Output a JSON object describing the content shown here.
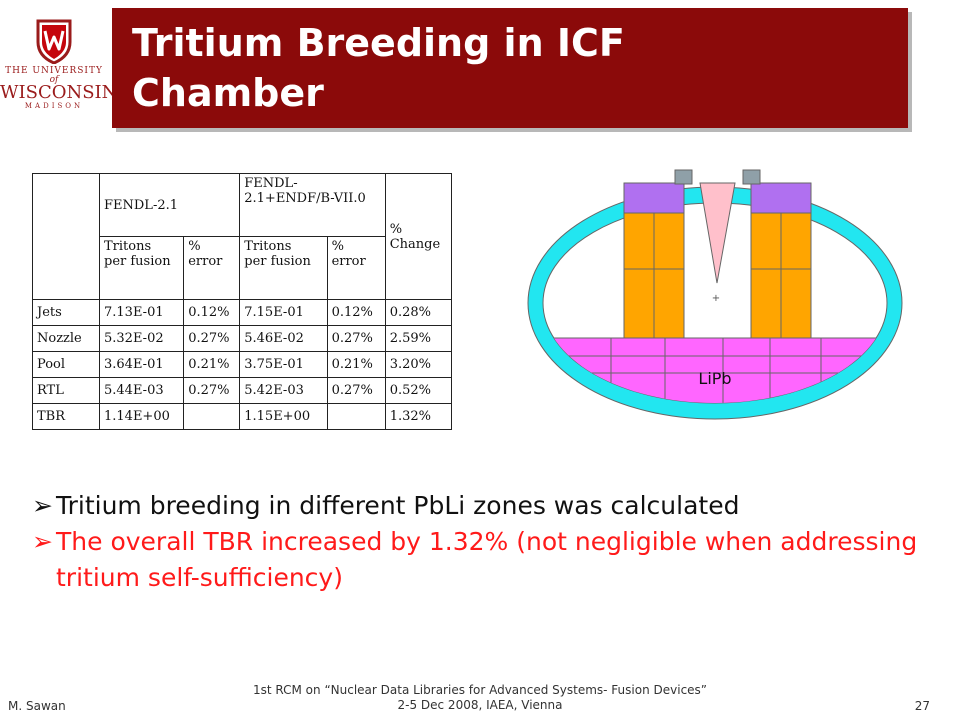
{
  "logo": {
    "line1": "THE UNIVERSITY",
    "line2": "of",
    "line3": "WISCONSIN",
    "line4": "MADISON"
  },
  "slide": {
    "title_line1": "Tritium Breeding in ICF",
    "title_line2": "Chamber"
  },
  "table": {
    "header_lib1": "FENDL-2.1",
    "header_lib2_line1": "FENDL-",
    "header_lib2_line2": "2.1+ENDF/B-VII.0",
    "header_change_line1": "%",
    "header_change_line2": "Change",
    "sub_tritons_line1": "Tritons",
    "sub_tritons_line2": "per fusion",
    "sub_error_line1": "%",
    "sub_error_line2": "error",
    "rows": [
      {
        "zone": "Jets",
        "t1": "7.13E-01",
        "e1": "0.12%",
        "t2": "7.15E-01",
        "e2": "0.12%",
        "change": "0.28%"
      },
      {
        "zone": "Nozzle",
        "t1": "5.32E-02",
        "e1": "0.27%",
        "t2": "5.46E-02",
        "e2": "0.27%",
        "change": "2.59%"
      },
      {
        "zone": "Pool",
        "t1": "3.64E-01",
        "e1": "0.21%",
        "t2": "3.75E-01",
        "e2": "0.21%",
        "change": "3.20%"
      },
      {
        "zone": "RTL",
        "t1": "5.44E-03",
        "e1": "0.27%",
        "t2": "5.42E-03",
        "e2": "0.27%",
        "change": "0.52%"
      },
      {
        "zone": "TBR",
        "t1": "1.14E+00",
        "e1": "",
        "t2": "1.15E+00",
        "e2": "",
        "change": "1.32%"
      }
    ]
  },
  "diagram": {
    "pool_label": "LiPb",
    "center_marker": "+",
    "colors": {
      "vessel": "#22e6f0",
      "blanket": "#ffa500",
      "top_block": "#b070f0",
      "pool": "#ff66ff",
      "nozzle": "#ffc0cb",
      "port": "#8fa0a8"
    }
  },
  "bullets": {
    "marker": "➢",
    "b1": "Tritium breeding in different PbLi zones was calculated",
    "b2": "The overall TBR increased by 1.32% (not negligible when addressing tritium self-sufficiency)"
  },
  "footer": {
    "author": "M. Sawan",
    "center_line1": "1st RCM on “Nuclear Data Libraries for Advanced Systems- Fusion Devices”",
    "center_line2": "2-5 Dec 2008, IAEA, Vienna",
    "page": "27"
  }
}
